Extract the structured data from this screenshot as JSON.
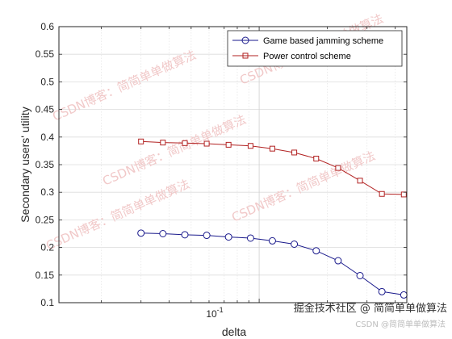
{
  "chart_data": {
    "type": "line",
    "xlabel": "delta",
    "ylabel": "Secondary users' utility",
    "xscale": "log",
    "xlim": [
      0.013,
      0.45
    ],
    "ylim": [
      0.1,
      0.6
    ],
    "yticks": [
      "0.1",
      "0.15",
      "0.2",
      "0.25",
      "0.3",
      "0.35",
      "0.4",
      "0.45",
      "0.5",
      "0.55",
      "0.6"
    ],
    "xtick_label": {
      "base": "10",
      "exp": "-1"
    },
    "grid": "on",
    "legend_position": "top-right",
    "x": [
      0.03,
      0.0375,
      0.0469,
      0.0586,
      0.0732,
      0.0916,
      0.1144,
      0.143,
      0.1788,
      0.2235,
      0.2794,
      0.3492,
      0.4365
    ],
    "series": [
      {
        "name": "Game based jamming scheme",
        "color": "#1a1a8c",
        "marker": "circle",
        "values": [
          0.226,
          0.225,
          0.223,
          0.222,
          0.219,
          0.217,
          0.212,
          0.206,
          0.194,
          0.176,
          0.149,
          0.12,
          0.114
        ]
      },
      {
        "name": "Power control scheme",
        "color": "#b22222",
        "marker": "square",
        "values": [
          0.392,
          0.39,
          0.389,
          0.388,
          0.386,
          0.384,
          0.379,
          0.372,
          0.361,
          0.344,
          0.321,
          0.297,
          0.296
        ]
      }
    ]
  },
  "watermark": {
    "text": "CSDN博客：简简单单做算法"
  },
  "footer": {
    "text": "掘金技术社区 @ 简简单单做算法",
    "subtext": "CSDN @简简单单做算法"
  }
}
